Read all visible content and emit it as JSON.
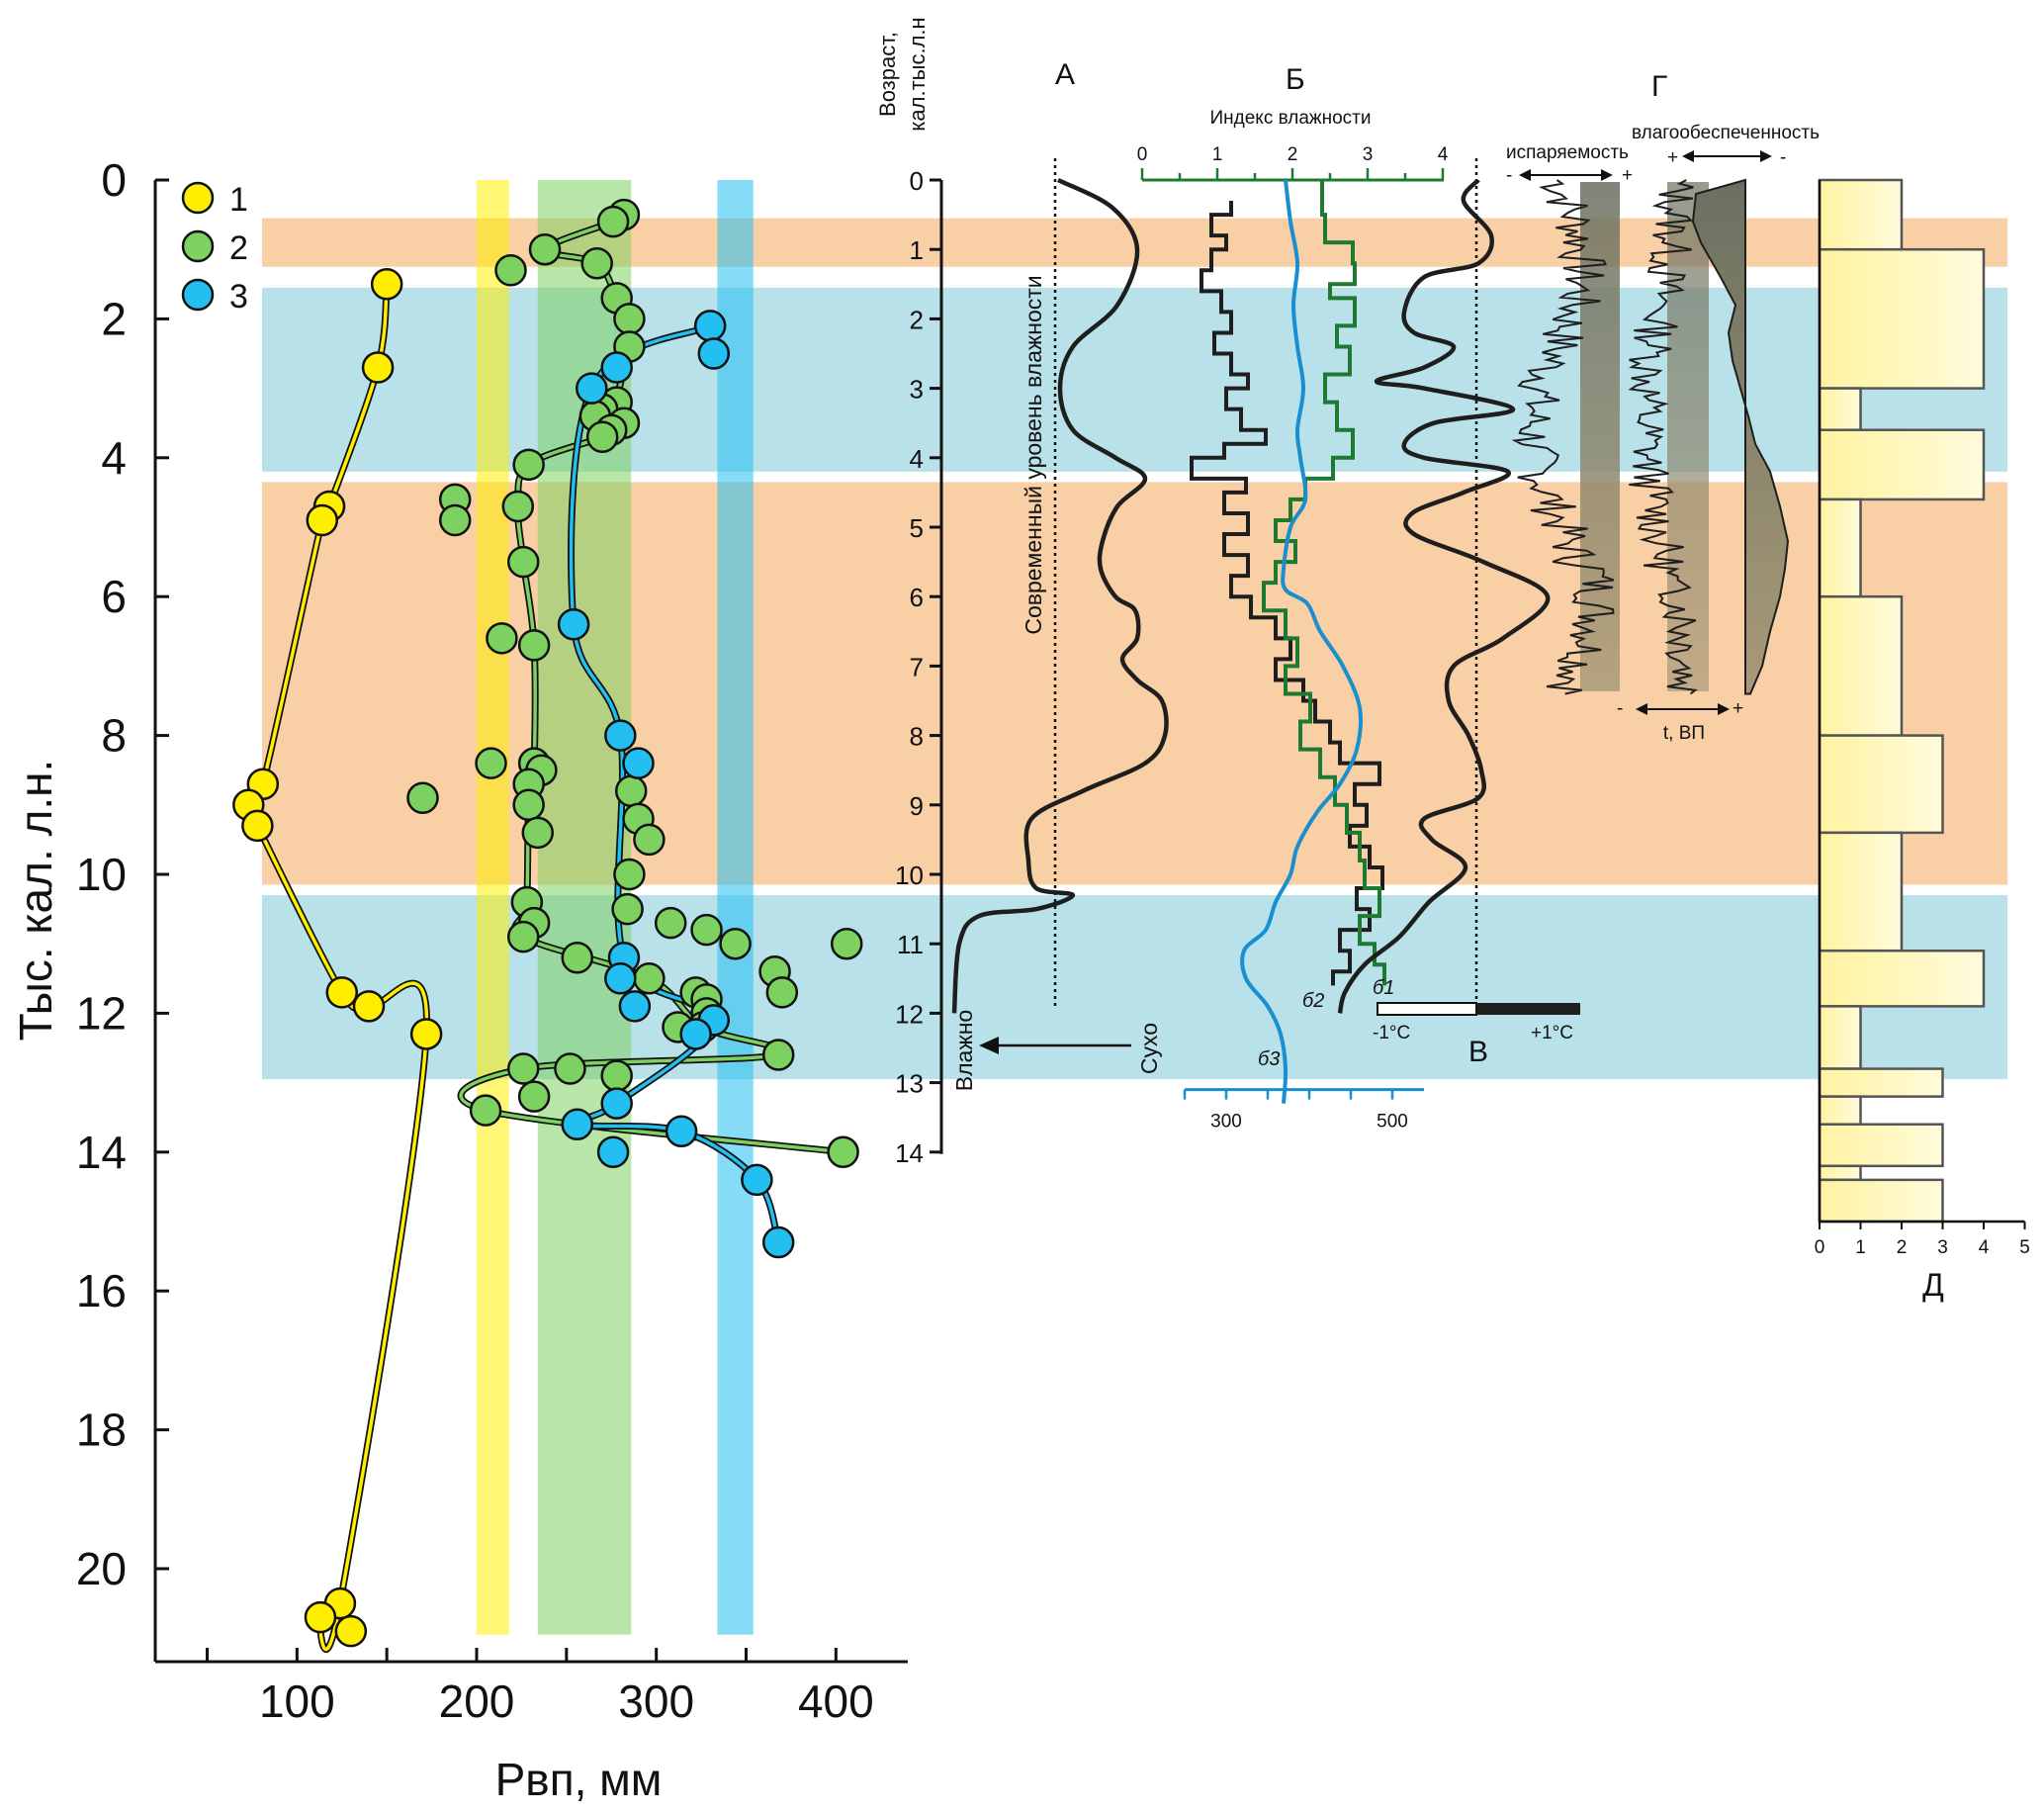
{
  "colors": {
    "yellow": "#ffee00",
    "green": "#7dd160",
    "blue": "#22bff0",
    "band_orange": "#f9cfa6",
    "band_blue": "#b9e1ea",
    "dark": "#1e1e1e",
    "green_line": "#1e7a32",
    "blue_line": "#1a8fcf"
  },
  "main": {
    "ylabel": "Тыс. кал. л.н.",
    "xlabel": "Рвп, мм",
    "yticks": [
      0,
      2,
      4,
      6,
      8,
      10,
      12,
      14,
      16,
      18,
      20
    ],
    "xticks": [
      100,
      200,
      300,
      400
    ],
    "legend": [
      {
        "label": "1",
        "color": "#ffee00"
      },
      {
        "label": "2",
        "color": "#7dd160"
      },
      {
        "label": "3",
        "color": "#22bff0"
      }
    ]
  },
  "panels": {
    "age_label_line1": "Возраст,",
    "age_label_line2": "кал.тыс.л.н",
    "age_ticks": [
      0,
      1,
      2,
      3,
      4,
      5,
      6,
      7,
      8,
      9,
      10,
      11,
      12,
      13,
      14
    ],
    "a_letter": "А",
    "b_letter": "Б",
    "v_letter": "В",
    "g_letter": "Г",
    "d_letter": "Д",
    "a_vertical_text": "Современный уровень влажности",
    "wet": "Влажно",
    "dry": "Сухо",
    "b_index_title": "Индекс влажности",
    "b_index_ticks": [
      "0",
      "1",
      "2",
      "3",
      "4"
    ],
    "b_bottom_ticks": [
      "300",
      "500"
    ],
    "b1": "б1",
    "b2": "б2",
    "b3": "б3",
    "v_minus": "-1°C",
    "v_plus": "+1°C",
    "g_evap": "испаряемость",
    "g_moist": "влагообеспеченность",
    "g_t": "t, ВП",
    "minus": "-",
    "plus": "+",
    "d_ticks": [
      "0",
      "1",
      "2",
      "3",
      "4",
      "5"
    ]
  },
  "chart_data": {
    "type": "scatter",
    "x_label": "Рвп, мм",
    "y_label": "Тыс. кал. л.н.",
    "xlim": [
      20,
      440
    ],
    "ylim": [
      0,
      21.3
    ],
    "y_inverted": true,
    "bands_vertical": [
      {
        "x": [
          200,
          218
        ],
        "color": "#ffee00"
      },
      {
        "x": [
          234,
          286
        ],
        "color": "#7dd160"
      },
      {
        "x": [
          334,
          354
        ],
        "color": "#22bff0"
      }
    ],
    "bands_horizontal": [
      {
        "y": [
          0.55,
          1.25
        ],
        "color": "#f9cfa6"
      },
      {
        "y": [
          1.55,
          4.2
        ],
        "color": "#b9e1ea"
      },
      {
        "y": [
          4.35,
          10.15
        ],
        "color": "#f9cfa6"
      },
      {
        "y": [
          10.3,
          12.95
        ],
        "color": "#b9e1ea"
      }
    ],
    "series": [
      {
        "name": "1",
        "color": "#ffee00",
        "points": [
          [
            150,
            1.5
          ],
          [
            145,
            2.7
          ],
          [
            118,
            4.7
          ],
          [
            114,
            4.9
          ],
          [
            81,
            8.7
          ],
          [
            73,
            9.0
          ],
          [
            78,
            9.3
          ],
          [
            125,
            11.7
          ],
          [
            140,
            11.9
          ],
          [
            172,
            12.3
          ],
          [
            124,
            20.5
          ],
          [
            113,
            20.7
          ],
          [
            130,
            20.9
          ]
        ],
        "line": [
          [
            150,
            1.5
          ],
          [
            145,
            2.7
          ],
          [
            118,
            4.7
          ],
          [
            114,
            4.9
          ],
          [
            81,
            8.7
          ],
          [
            73,
            9.0
          ],
          [
            78,
            9.3
          ],
          [
            125,
            11.7
          ],
          [
            140,
            11.9
          ],
          [
            172,
            12.3
          ],
          [
            124,
            20.5
          ],
          [
            113,
            20.7
          ],
          [
            130,
            20.9
          ]
        ]
      },
      {
        "name": "2",
        "color": "#7dd160",
        "points": [
          [
            282,
            0.5
          ],
          [
            276,
            0.6
          ],
          [
            238,
            1.0
          ],
          [
            267,
            1.2
          ],
          [
            219,
            1.3
          ],
          [
            278,
            1.7
          ],
          [
            285,
            2.0
          ],
          [
            285,
            2.4
          ],
          [
            278,
            3.2
          ],
          [
            270,
            3.3
          ],
          [
            266,
            3.4
          ],
          [
            282,
            3.5
          ],
          [
            275,
            3.6
          ],
          [
            270,
            3.7
          ],
          [
            229,
            4.1
          ],
          [
            188,
            4.6
          ],
          [
            188,
            4.9
          ],
          [
            223,
            4.7
          ],
          [
            226,
            5.5
          ],
          [
            214,
            6.6
          ],
          [
            232,
            6.7
          ],
          [
            208,
            8.4
          ],
          [
            232,
            8.4
          ],
          [
            236,
            8.5
          ],
          [
            229,
            8.7
          ],
          [
            229,
            9.0
          ],
          [
            234,
            9.4
          ],
          [
            170,
            8.9
          ],
          [
            286,
            8.8
          ],
          [
            290,
            9.2
          ],
          [
            296,
            9.5
          ],
          [
            285,
            10.0
          ],
          [
            284,
            10.5
          ],
          [
            308,
            10.7
          ],
          [
            228,
            10.4
          ],
          [
            232,
            10.7
          ],
          [
            226,
            10.9
          ],
          [
            256,
            11.2
          ],
          [
            296,
            11.5
          ],
          [
            328,
            10.8
          ],
          [
            344,
            11.0
          ],
          [
            406,
            11.0
          ],
          [
            366,
            11.4
          ],
          [
            370,
            11.7
          ],
          [
            322,
            11.7
          ],
          [
            328,
            11.8
          ],
          [
            328,
            12.0
          ],
          [
            326,
            12.2
          ],
          [
            312,
            12.2
          ],
          [
            368,
            12.6
          ],
          [
            226,
            12.8
          ],
          [
            252,
            12.8
          ],
          [
            232,
            13.2
          ],
          [
            278,
            12.9
          ],
          [
            205,
            13.4
          ],
          [
            404,
            14.0
          ]
        ],
        "line": [
          [
            282,
            0.5
          ],
          [
            276,
            0.6
          ],
          [
            238,
            1.0
          ],
          [
            267,
            1.2
          ],
          [
            278,
            1.7
          ],
          [
            285,
            2.0
          ],
          [
            285,
            2.4
          ],
          [
            278,
            3.2
          ],
          [
            282,
            3.5
          ],
          [
            270,
            3.7
          ],
          [
            229,
            4.1
          ],
          [
            223,
            4.7
          ],
          [
            226,
            5.5
          ],
          [
            232,
            6.7
          ],
          [
            232,
            8.4
          ],
          [
            229,
            9.0
          ],
          [
            228,
            10.4
          ],
          [
            226,
            10.9
          ],
          [
            296,
            11.5
          ],
          [
            326,
            12.2
          ],
          [
            368,
            12.6
          ],
          [
            226,
            12.8
          ],
          [
            205,
            13.4
          ],
          [
            404,
            14.0
          ]
        ]
      },
      {
        "name": "3",
        "color": "#22bff0",
        "points": [
          [
            330,
            2.1
          ],
          [
            332,
            2.5
          ],
          [
            278,
            2.7
          ],
          [
            264,
            3.0
          ],
          [
            254,
            6.4
          ],
          [
            280,
            8.0
          ],
          [
            290,
            8.4
          ],
          [
            282,
            11.2
          ],
          [
            280,
            11.5
          ],
          [
            288,
            11.9
          ],
          [
            332,
            12.1
          ],
          [
            322,
            12.3
          ],
          [
            278,
            13.3
          ],
          [
            256,
            13.6
          ],
          [
            314,
            13.7
          ],
          [
            276,
            14.0
          ],
          [
            356,
            14.4
          ],
          [
            368,
            15.3
          ]
        ],
        "line": [
          [
            330,
            2.1
          ],
          [
            264,
            3.0
          ],
          [
            254,
            6.4
          ],
          [
            280,
            8.0
          ],
          [
            282,
            11.2
          ],
          [
            332,
            12.1
          ],
          [
            278,
            13.3
          ],
          [
            256,
            13.6
          ],
          [
            314,
            13.7
          ],
          [
            356,
            14.4
          ],
          [
            368,
            15.3
          ]
        ]
      }
    ],
    "histogram_D": {
      "xlabel": "Д",
      "xlim": [
        0,
        5
      ],
      "bins": [
        {
          "y": [
            0,
            1
          ],
          "value": 2
        },
        {
          "y": [
            1,
            3
          ],
          "value": 4
        },
        {
          "y": [
            3,
            3.6
          ],
          "value": 1
        },
        {
          "y": [
            3.6,
            4.6
          ],
          "value": 4
        },
        {
          "y": [
            4.6,
            6
          ],
          "value": 1
        },
        {
          "y": [
            6,
            8
          ],
          "value": 2
        },
        {
          "y": [
            8,
            9.4
          ],
          "value": 3
        },
        {
          "y": [
            9.4,
            11.1
          ],
          "value": 2
        },
        {
          "y": [
            11.1,
            11.9
          ],
          "value": 4
        },
        {
          "y": [
            11.9,
            12.8
          ],
          "value": 1
        },
        {
          "y": [
            12.8,
            13.2
          ],
          "value": 3
        },
        {
          "y": [
            13.2,
            13.6
          ],
          "value": 1
        },
        {
          "y": [
            13.6,
            14.2
          ],
          "value": 3
        },
        {
          "y": [
            14.2,
            14.4
          ],
          "value": 1
        },
        {
          "y": [
            14.4,
            15
          ],
          "value": 3
        }
      ]
    }
  }
}
